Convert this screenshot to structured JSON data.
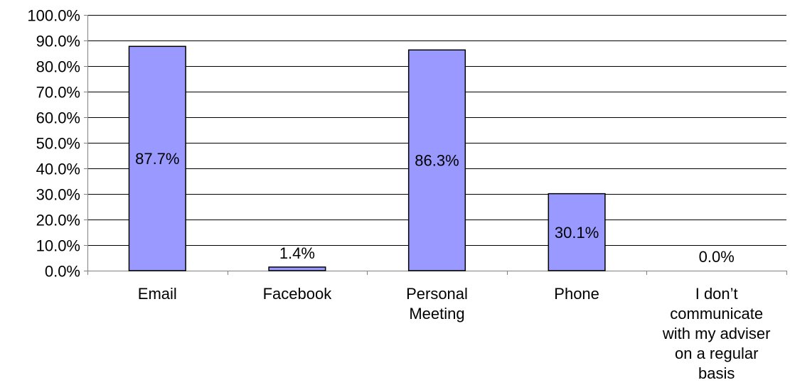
{
  "chart_data": {
    "type": "bar",
    "title": "",
    "xlabel": "",
    "ylabel": "",
    "categories": [
      [
        "Email"
      ],
      [
        "Facebook"
      ],
      [
        "Personal",
        "Meeting"
      ],
      [
        "Phone"
      ],
      [
        "I don’t",
        "communicate",
        "with my adviser",
        "on a regular",
        "basis"
      ]
    ],
    "values": [
      87.7,
      1.4,
      86.3,
      30.1,
      0.0
    ],
    "data_labels": [
      "87.7%",
      "1.4%",
      "86.3%",
      "30.1%",
      "0.0%"
    ],
    "yticks": [
      0,
      10,
      20,
      30,
      40,
      50,
      60,
      70,
      80,
      90,
      100
    ],
    "ytick_labels": [
      "0.0%",
      "10.0%",
      "20.0%",
      "30.0%",
      "40.0%",
      "50.0%",
      "60.0%",
      "70.0%",
      "80.0%",
      "90.0%",
      "100.0%"
    ],
    "ylim": [
      0,
      100
    ],
    "grid": true,
    "legend": "none",
    "colors": {
      "bar_fill": "#9999ff",
      "bar_stroke": "#000000",
      "grid": "#000000",
      "axis": "#808080"
    }
  }
}
